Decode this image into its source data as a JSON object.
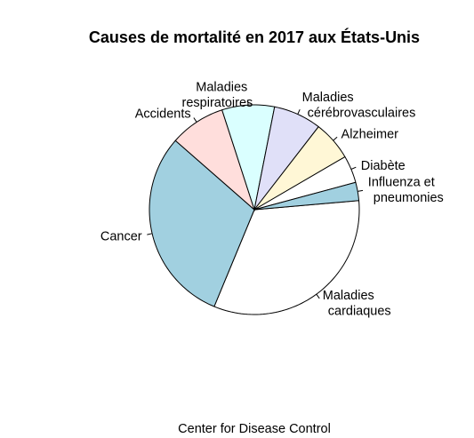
{
  "chart_data": {
    "type": "pie",
    "title": "Causes de mortalité en 2017 aux États-Unis",
    "caption": "Center for Disease Control",
    "slices": [
      {
        "label": "Maladies\ncardiaques",
        "value": 647457,
        "color": "#ffffff"
      },
      {
        "label": "Cancer",
        "value": 599108,
        "color": "#a1d0e0"
      },
      {
        "label": "Accidents",
        "value": 169936,
        "color": "#ffdedc"
      },
      {
        "label": "Maladies\nrespiratoires",
        "value": 160201,
        "color": "#daffff"
      },
      {
        "label": "Maladies\ncérébrovasculaires",
        "value": 146383,
        "color": "#e0e0f8"
      },
      {
        "label": "Alzheimer",
        "value": 121404,
        "color": "#fff7d6"
      },
      {
        "label": "Diabète",
        "value": 83564,
        "color": "#ffffff"
      },
      {
        "label": "Influenza et\npneumonies",
        "value": 55672,
        "color": "#a1d0e0"
      }
    ],
    "start_angle_deg": 5,
    "direction": "clockwise"
  }
}
